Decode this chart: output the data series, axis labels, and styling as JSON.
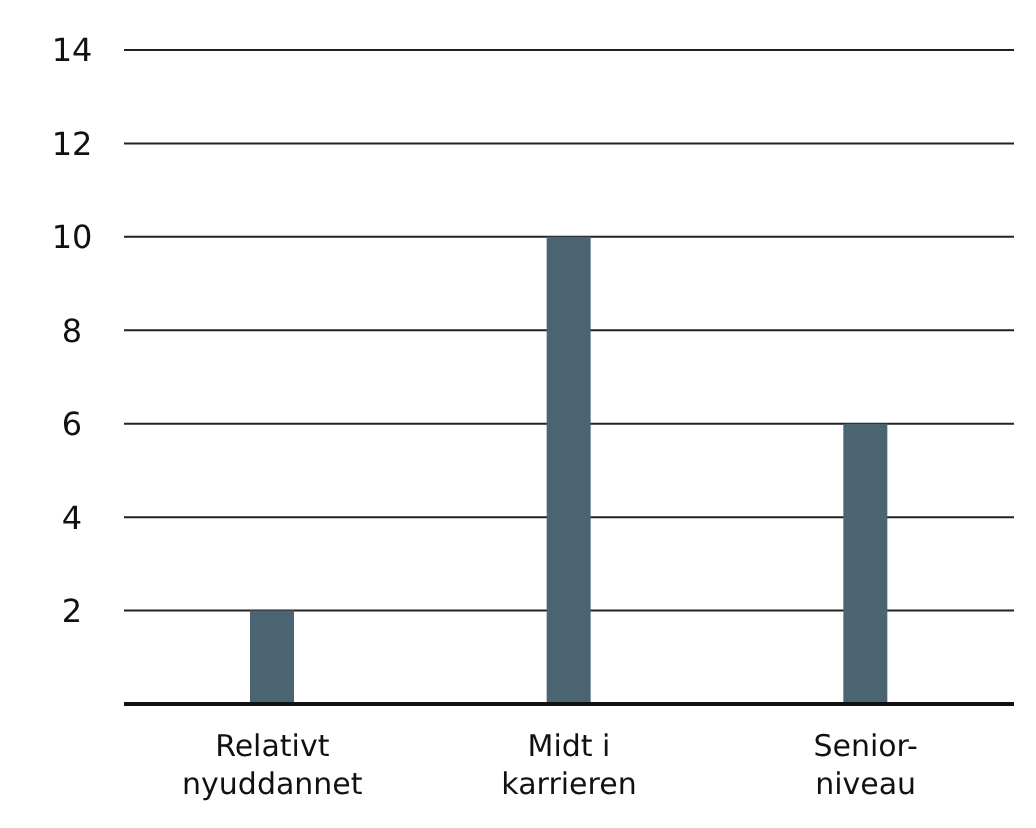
{
  "chart_data": {
    "type": "bar",
    "categories": [
      "Relativt nyuddannet",
      "Midt i karrieren",
      "Senior-niveau"
    ],
    "values": [
      2,
      10,
      6
    ],
    "color": "#4a6571",
    "ylim": [
      0,
      14
    ],
    "yticks": [
      2,
      4,
      6,
      8,
      10,
      12,
      14
    ],
    "grid": "y"
  }
}
